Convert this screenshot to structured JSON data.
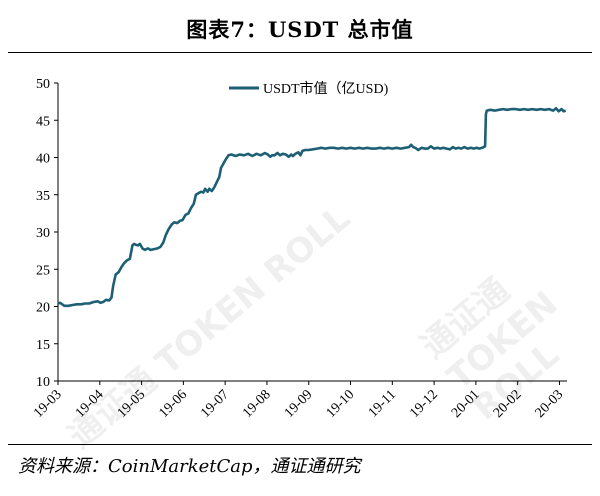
{
  "title": "图表7：USDT 总市值",
  "source": "资料来源：CoinMarketCap，通证通研究",
  "watermark": "通证通 TOKEN ROLL",
  "chart_data": {
    "type": "line",
    "title": "USDT 总市值",
    "legend": "top-center",
    "grid": false,
    "ylim": [
      10,
      50
    ],
    "yticks": [
      10,
      15,
      20,
      25,
      30,
      35,
      40,
      45,
      50
    ],
    "xticks": [
      "19-03",
      "19-04",
      "19-05",
      "19-06",
      "19-07",
      "19-08",
      "19-09",
      "19-10",
      "19-11",
      "19-12",
      "20-01",
      "20-02",
      "20-03"
    ],
    "series": [
      {
        "name": "USDT市值（亿USD)",
        "color": "#1d5f74",
        "points": [
          [
            0.0,
            20.4
          ],
          [
            0.05,
            20.5
          ],
          [
            0.1,
            20.3
          ],
          [
            0.15,
            20.1
          ],
          [
            0.25,
            20.1
          ],
          [
            0.35,
            20.2
          ],
          [
            0.45,
            20.3
          ],
          [
            0.55,
            20.3
          ],
          [
            0.65,
            20.4
          ],
          [
            0.75,
            20.4
          ],
          [
            0.85,
            20.6
          ],
          [
            0.95,
            20.7
          ],
          [
            1.02,
            20.5
          ],
          [
            1.08,
            20.6
          ],
          [
            1.15,
            20.9
          ],
          [
            1.22,
            20.8
          ],
          [
            1.28,
            21.2
          ],
          [
            1.32,
            22.8
          ],
          [
            1.38,
            24.3
          ],
          [
            1.45,
            24.6
          ],
          [
            1.52,
            25.3
          ],
          [
            1.58,
            25.8
          ],
          [
            1.65,
            26.2
          ],
          [
            1.72,
            26.4
          ],
          [
            1.78,
            28.2
          ],
          [
            1.82,
            28.4
          ],
          [
            1.86,
            28.3
          ],
          [
            1.92,
            28.2
          ],
          [
            1.96,
            28.4
          ],
          [
            2.02,
            27.8
          ],
          [
            2.08,
            27.6
          ],
          [
            2.15,
            27.8
          ],
          [
            2.22,
            27.6
          ],
          [
            2.3,
            27.7
          ],
          [
            2.38,
            27.8
          ],
          [
            2.45,
            28.0
          ],
          [
            2.52,
            28.6
          ],
          [
            2.58,
            29.6
          ],
          [
            2.65,
            30.4
          ],
          [
            2.72,
            31.0
          ],
          [
            2.78,
            31.3
          ],
          [
            2.85,
            31.2
          ],
          [
            2.92,
            31.5
          ],
          [
            2.98,
            31.6
          ],
          [
            3.05,
            32.3
          ],
          [
            3.12,
            32.5
          ],
          [
            3.18,
            33.2
          ],
          [
            3.25,
            33.8
          ],
          [
            3.3,
            35.0
          ],
          [
            3.36,
            35.2
          ],
          [
            3.42,
            35.4
          ],
          [
            3.48,
            35.3
          ],
          [
            3.52,
            35.8
          ],
          [
            3.58,
            35.4
          ],
          [
            3.62,
            35.8
          ],
          [
            3.68,
            35.5
          ],
          [
            3.74,
            36.0
          ],
          [
            3.8,
            36.7
          ],
          [
            3.86,
            37.4
          ],
          [
            3.9,
            38.6
          ],
          [
            3.96,
            39.2
          ],
          [
            4.02,
            39.8
          ],
          [
            4.08,
            40.3
          ],
          [
            4.15,
            40.4
          ],
          [
            4.25,
            40.2
          ],
          [
            4.35,
            40.4
          ],
          [
            4.45,
            40.3
          ],
          [
            4.55,
            40.5
          ],
          [
            4.65,
            40.2
          ],
          [
            4.75,
            40.5
          ],
          [
            4.85,
            40.3
          ],
          [
            4.95,
            40.6
          ],
          [
            5.02,
            40.4
          ],
          [
            5.08,
            40.1
          ],
          [
            5.12,
            40.3
          ],
          [
            5.18,
            40.3
          ],
          [
            5.25,
            40.6
          ],
          [
            5.32,
            40.3
          ],
          [
            5.38,
            40.5
          ],
          [
            5.45,
            40.4
          ],
          [
            5.52,
            40.1
          ],
          [
            5.58,
            40.4
          ],
          [
            5.62,
            40.2
          ],
          [
            5.68,
            40.5
          ],
          [
            5.75,
            40.7
          ],
          [
            5.8,
            40.3
          ],
          [
            5.85,
            40.9
          ],
          [
            5.92,
            41.0
          ],
          [
            6.0,
            41.0
          ],
          [
            6.1,
            41.1
          ],
          [
            6.2,
            41.2
          ],
          [
            6.3,
            41.3
          ],
          [
            6.4,
            41.2
          ],
          [
            6.5,
            41.3
          ],
          [
            6.6,
            41.3
          ],
          [
            6.7,
            41.2
          ],
          [
            6.8,
            41.3
          ],
          [
            6.9,
            41.2
          ],
          [
            7.0,
            41.3
          ],
          [
            7.1,
            41.2
          ],
          [
            7.2,
            41.3
          ],
          [
            7.3,
            41.2
          ],
          [
            7.4,
            41.3
          ],
          [
            7.5,
            41.2
          ],
          [
            7.6,
            41.2
          ],
          [
            7.7,
            41.3
          ],
          [
            7.8,
            41.2
          ],
          [
            7.9,
            41.3
          ],
          [
            8.0,
            41.2
          ],
          [
            8.1,
            41.3
          ],
          [
            8.2,
            41.2
          ],
          [
            8.3,
            41.3
          ],
          [
            8.4,
            41.4
          ],
          [
            8.45,
            41.7
          ],
          [
            8.5,
            41.4
          ],
          [
            8.55,
            41.3
          ],
          [
            8.62,
            41.0
          ],
          [
            8.7,
            41.3
          ],
          [
            8.78,
            41.2
          ],
          [
            8.85,
            41.2
          ],
          [
            8.92,
            41.5
          ],
          [
            9.0,
            41.2
          ],
          [
            9.08,
            41.3
          ],
          [
            9.15,
            41.2
          ],
          [
            9.22,
            41.3
          ],
          [
            9.3,
            41.2
          ],
          [
            9.38,
            41.1
          ],
          [
            9.45,
            41.4
          ],
          [
            9.52,
            41.2
          ],
          [
            9.58,
            41.3
          ],
          [
            9.65,
            41.2
          ],
          [
            9.72,
            41.4
          ],
          [
            9.8,
            41.2
          ],
          [
            9.88,
            41.3
          ],
          [
            9.95,
            41.2
          ],
          [
            10.02,
            41.3
          ],
          [
            10.08,
            41.2
          ],
          [
            10.15,
            41.3
          ],
          [
            10.22,
            41.5
          ],
          [
            10.24,
            45.8
          ],
          [
            10.26,
            46.3
          ],
          [
            10.35,
            46.4
          ],
          [
            10.45,
            46.3
          ],
          [
            10.55,
            46.4
          ],
          [
            10.65,
            46.5
          ],
          [
            10.75,
            46.4
          ],
          [
            10.85,
            46.5
          ],
          [
            10.95,
            46.5
          ],
          [
            11.05,
            46.4
          ],
          [
            11.15,
            46.5
          ],
          [
            11.25,
            46.4
          ],
          [
            11.35,
            46.5
          ],
          [
            11.45,
            46.4
          ],
          [
            11.55,
            46.5
          ],
          [
            11.65,
            46.4
          ],
          [
            11.75,
            46.5
          ],
          [
            11.85,
            46.3
          ],
          [
            11.92,
            46.6
          ],
          [
            11.98,
            46.2
          ],
          [
            12.05,
            46.5
          ],
          [
            12.1,
            46.2
          ],
          [
            12.15,
            46.3
          ]
        ]
      }
    ]
  }
}
